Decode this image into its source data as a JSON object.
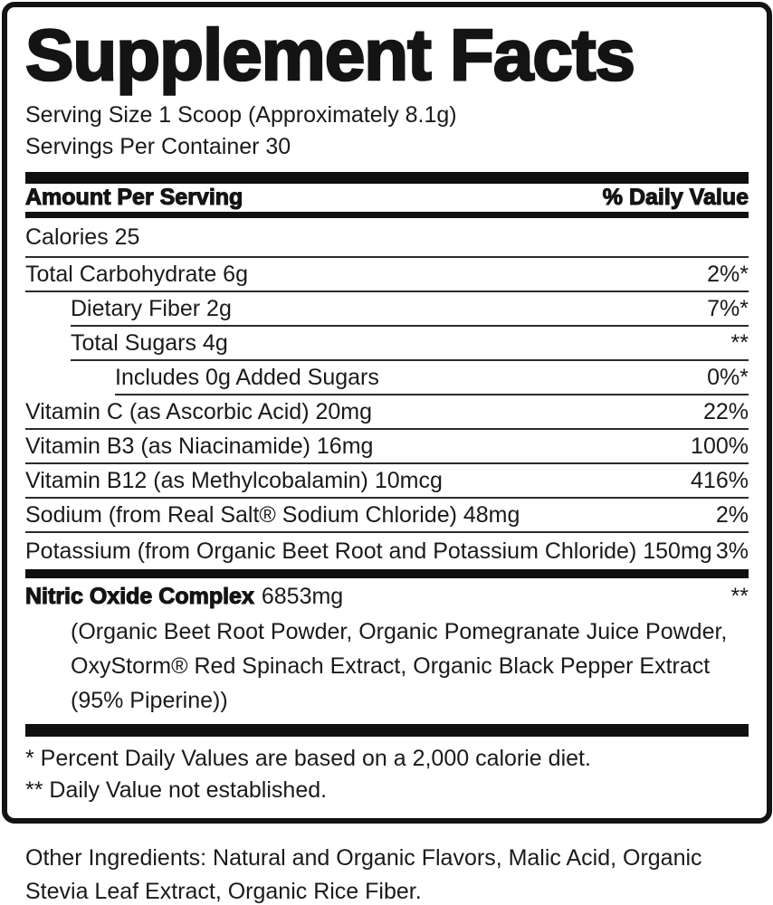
{
  "label": {
    "title": "Supplement Facts",
    "serving_size": "Serving Size 1 Scoop (Approximately 8.1g)",
    "servings_per_container": "Servings Per Container 30",
    "columns": {
      "amount_per_serving": "Amount Per Serving",
      "daily_value": "% Daily Value"
    },
    "rows": [
      {
        "label": "Calories 25",
        "value": "",
        "indent": 0
      },
      {
        "label": "Total Carbohydrate 6g",
        "value": "2%*",
        "indent": 0
      },
      {
        "label": "Dietary Fiber 2g",
        "value": "7%*",
        "indent": 1
      },
      {
        "label": "Total Sugars 4g",
        "value": "**",
        "indent": 1
      },
      {
        "label": "Includes 0g Added Sugars",
        "value": "0%*",
        "indent": 2
      },
      {
        "label": "Vitamin C (as Ascorbic Acid) 20mg",
        "value": "22%",
        "indent": 0
      },
      {
        "label": "Vitamin B3 (as Niacinamide) 16mg",
        "value": "100%",
        "indent": 0
      },
      {
        "label": "Vitamin B12 (as Methylcobalamin) 10mcg",
        "value": "416%",
        "indent": 0
      },
      {
        "label": "Sodium (from Real Salt® Sodium Chloride) 48mg",
        "value": "2%",
        "indent": 0
      },
      {
        "label": "Potassium (from Organic Beet Root and Potassium Chloride) 150mg",
        "value": "3%",
        "indent": 0
      }
    ],
    "blend": {
      "name": "Nitric Oxide Complex",
      "amount": "6853mg",
      "daily_value": "**",
      "ingredients_lines": [
        "(Organic Beet Root Powder, Organic Pomegranate Juice Powder,",
        "OxyStorm® Red Spinach Extract, Organic Black Pepper Extract",
        "(95% Piperine))"
      ]
    },
    "footnotes": [
      "* Percent Daily Values are based on a 2,000 calorie diet.",
      "** Daily Value not established."
    ]
  },
  "other_ingredients": "Other Ingredients: Natural and Organic Flavors, Malic Acid, Organic Stevia Leaf Extract, Organic Rice Fiber.",
  "colors": {
    "text": "#1a1a1a",
    "bars": "#101010",
    "hairline": "#2b2b2b",
    "border": "#141414",
    "background": "#ffffff"
  }
}
